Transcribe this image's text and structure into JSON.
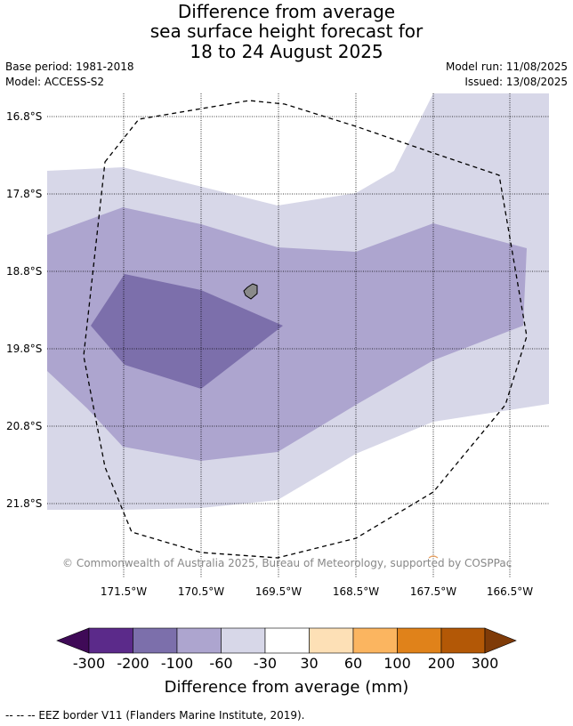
{
  "title": {
    "line1": "Difference from average",
    "line2": "sea surface height forecast for",
    "line3": "18 to 24 August 2025"
  },
  "meta": {
    "base_period": "Base period: 1981-2018",
    "model": "Model: ACCESS-S2",
    "model_run": "Model run: 11/08/2025",
    "issued": "Issued: 13/08/2025"
  },
  "map": {
    "lat_labels": [
      "16.8°S",
      "17.8°S",
      "18.8°S",
      "19.8°S",
      "20.8°S",
      "21.8°S"
    ],
    "lon_labels": [
      "171.5°W",
      "170.5°W",
      "169.5°W",
      "168.5°W",
      "167.5°W",
      "166.5°W"
    ],
    "copyright": "© Commonwealth of Australia 2025, Bureau of Meteorology, supported by COSPPac"
  },
  "legend": {
    "title": "Difference from average (mm)",
    "ticks": [
      "-300",
      "-200",
      "-100",
      "-60",
      "-30",
      "30",
      "60",
      "100",
      "200",
      "300"
    ],
    "colors": [
      "#3f0a57",
      "#5b2a8a",
      "#7c6fab",
      "#ada5cf",
      "#d7d7e8",
      "#ffffff",
      "#fde0b6",
      "#fbb560",
      "#e0821a",
      "#b35806",
      "#7f3b08"
    ]
  },
  "footnote": "--  --  -- EEZ border V11 (Flanders Marine Institute, 2019)."
}
